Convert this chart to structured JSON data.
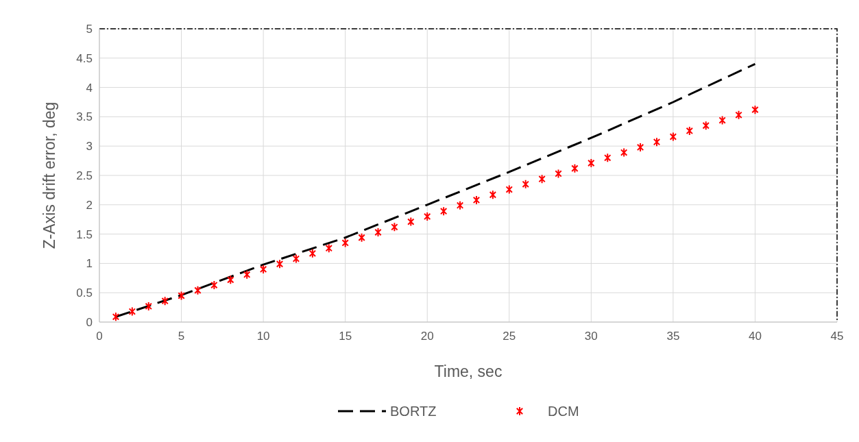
{
  "chart_data": {
    "type": "line",
    "xlabel": "Time, sec",
    "ylabel": "Z-Axis drift error, deg",
    "xlim": [
      0,
      45
    ],
    "xticks": [
      0,
      5,
      10,
      15,
      20,
      25,
      30,
      35,
      40,
      45
    ],
    "ylim": [
      0,
      5
    ],
    "yticks": [
      0,
      0.5,
      1,
      1.5,
      2,
      2.5,
      3,
      3.5,
      4,
      4.5,
      5
    ],
    "grid": true,
    "legend": "bottom",
    "series": [
      {
        "name": "BORTZ",
        "color": "#000000",
        "line_style": "dashed",
        "marker": "none",
        "x": [
          1,
          5,
          10,
          15,
          20,
          25,
          30,
          35,
          40
        ],
        "values": [
          0.09,
          0.46,
          0.98,
          1.44,
          2.0,
          2.56,
          3.14,
          3.75,
          4.4
        ]
      },
      {
        "name": "DCM",
        "type": "scatter",
        "color": "#ff0000",
        "marker": "cross",
        "x": [
          1,
          2,
          3,
          4,
          5,
          6,
          7,
          8,
          9,
          10,
          11,
          12,
          13,
          14,
          15,
          16,
          17,
          18,
          19,
          20,
          21,
          22,
          23,
          24,
          25,
          26,
          27,
          28,
          29,
          30,
          31,
          32,
          33,
          34,
          35,
          36,
          37,
          38,
          39,
          40
        ],
        "values": [
          0.09,
          0.18,
          0.27,
          0.36,
          0.45,
          0.54,
          0.63,
          0.72,
          0.81,
          0.9,
          0.99,
          1.08,
          1.17,
          1.26,
          1.35,
          1.44,
          1.53,
          1.62,
          1.71,
          1.8,
          1.89,
          1.99,
          2.08,
          2.17,
          2.26,
          2.35,
          2.44,
          2.53,
          2.62,
          2.71,
          2.8,
          2.89,
          2.98,
          3.07,
          3.16,
          3.26,
          3.35,
          3.44,
          3.53,
          3.62
        ]
      }
    ]
  }
}
